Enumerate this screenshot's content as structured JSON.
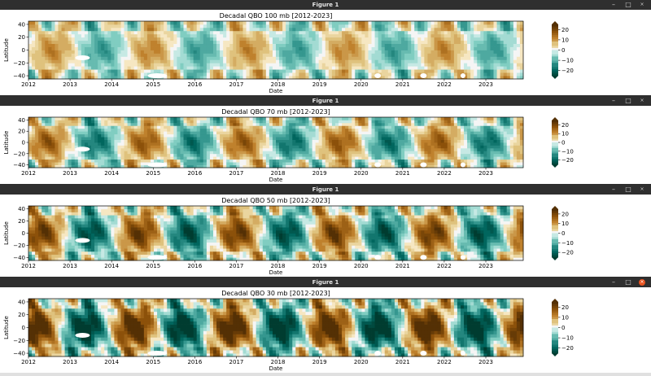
{
  "window_title": "Figure 1",
  "window_controls": {
    "minimize": "–",
    "maximize": "□",
    "close": "×"
  },
  "colors": {
    "brown_dark": "#543005",
    "teal_dark": "#003c30",
    "mid": "#f5f5f5",
    "titlebar": "#2f2f2f",
    "close_active": "#e95420"
  },
  "chart_data": [
    {
      "type": "heatmap",
      "title": "Decadal QBO 100 mb [2012-2023]",
      "xlabel": "Date",
      "ylabel": "Latitude",
      "x_ticks": [
        "2012",
        "2013",
        "2014",
        "2015",
        "2016",
        "2017",
        "2018",
        "2019",
        "2020",
        "2021",
        "2022",
        "2023"
      ],
      "y_ticks": [
        "40",
        "20",
        "0",
        "−20",
        "−40"
      ],
      "ylim": [
        -45,
        45
      ],
      "xlim": [
        2012,
        2023.9
      ],
      "colorbar": {
        "ticks": [
          "20",
          "10",
          "0",
          "−10",
          "−20"
        ],
        "range": [
          -25,
          25
        ],
        "colormap": "BrBG"
      },
      "amplitude": 0.45
    },
    {
      "type": "heatmap",
      "title": "Decadal QBO 70 mb [2012-2023]",
      "xlabel": "Date",
      "ylabel": "Latitude",
      "x_ticks": [
        "2012",
        "2013",
        "2014",
        "2015",
        "2016",
        "2017",
        "2018",
        "2019",
        "2020",
        "2021",
        "2022",
        "2023"
      ],
      "y_ticks": [
        "40",
        "20",
        "0",
        "−20",
        "−40"
      ],
      "ylim": [
        -45,
        45
      ],
      "xlim": [
        2012,
        2023.9
      ],
      "colorbar": {
        "ticks": [
          "20",
          "10",
          "0",
          "−10",
          "−20"
        ],
        "range": [
          -25,
          25
        ],
        "colormap": "BrBG"
      },
      "amplitude": 0.65
    },
    {
      "type": "heatmap",
      "title": "Decadal QBO 50 mb [2012-2023]",
      "xlabel": "Date",
      "ylabel": "Latitude",
      "x_ticks": [
        "2012",
        "2013",
        "2014",
        "2015",
        "2016",
        "2017",
        "2018",
        "2019",
        "2020",
        "2021",
        "2022",
        "2023"
      ],
      "y_ticks": [
        "40",
        "20",
        "0",
        "−20",
        "−40"
      ],
      "ylim": [
        -45,
        45
      ],
      "xlim": [
        2012,
        2023.9
      ],
      "colorbar": {
        "ticks": [
          "20",
          "10",
          "0",
          "−10",
          "−20"
        ],
        "range": [
          -25,
          25
        ],
        "colormap": "BrBG"
      },
      "amplitude": 0.85
    },
    {
      "type": "heatmap",
      "title": "Decadal QBO 30 mb [2012-2023]",
      "xlabel": "Date",
      "ylabel": "Latitude",
      "x_ticks": [
        "2012",
        "2013",
        "2014",
        "2015",
        "2016",
        "2017",
        "2018",
        "2019",
        "2020",
        "2021",
        "2022",
        "2023"
      ],
      "y_ticks": [
        "40",
        "20",
        "0",
        "−20",
        "−40"
      ],
      "ylim": [
        -45,
        45
      ],
      "xlim": [
        2012,
        2023.9
      ],
      "colorbar": {
        "ticks": [
          "20",
          "10",
          "0",
          "−10",
          "−20"
        ],
        "range": [
          -25,
          25
        ],
        "colormap": "BrBG"
      },
      "amplitude": 1.1
    }
  ]
}
